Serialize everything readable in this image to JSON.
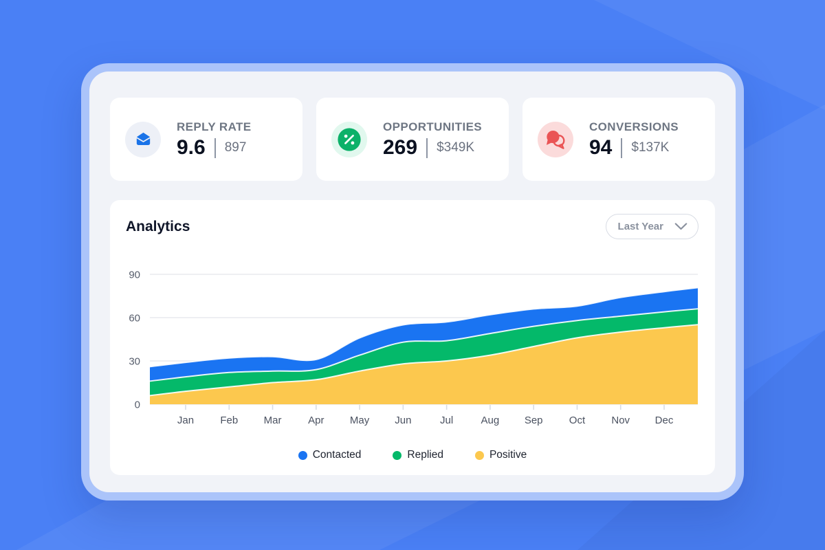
{
  "theme": {
    "background_blue": "#4a80f5",
    "panel_frame": "#abc4fa",
    "panel_bg": "#f1f3f8",
    "card_bg": "#ffffff"
  },
  "stats": [
    {
      "label": "REPLY RATE",
      "value": "9.6",
      "secondary": "897",
      "icon": "envelope-open-icon",
      "icon_color": "#1a73e8",
      "icon_bg": "#edf0f7"
    },
    {
      "label": "OPPORTUNITIES",
      "value": "269",
      "secondary": "$349K",
      "icon": "percent-badge-icon",
      "icon_color": "#0cb169",
      "icon_bg": "#e1f8ee"
    },
    {
      "label": "CONVERSIONS",
      "value": "94",
      "secondary": "$137K",
      "icon": "chat-bubbles-icon",
      "icon_color": "#ea5455",
      "icon_bg": "#fbdbdb"
    }
  ],
  "analytics": {
    "title": "Analytics",
    "range_selector": {
      "value": "Last Year"
    },
    "legend": [
      {
        "label": "Contacted",
        "color": "#1a74f2"
      },
      {
        "label": "Replied",
        "color": "#04b96a"
      },
      {
        "label": "Positive",
        "color": "#fcc84e"
      }
    ]
  },
  "chart_data": {
    "type": "area",
    "stacked": true,
    "title": "Analytics",
    "x": [
      "Jan",
      "Feb",
      "Mar",
      "Apr",
      "May",
      "Jun",
      "Jul",
      "Aug",
      "Sep",
      "Oct",
      "Nov",
      "Dec"
    ],
    "series": [
      {
        "name": "Positive",
        "color": "#fcc84e",
        "values": [
          9,
          12,
          15,
          17,
          23,
          28,
          30,
          34,
          40,
          46,
          50,
          53
        ]
      },
      {
        "name": "Replied",
        "color": "#04b96a",
        "values": [
          10,
          10,
          8,
          7,
          11,
          15,
          14,
          15,
          14,
          12,
          11,
          11
        ]
      },
      {
        "name": "Contacted",
        "color": "#1a74f2",
        "values": [
          10,
          10,
          10,
          7,
          12,
          12,
          13,
          13,
          12,
          10,
          13,
          14
        ]
      }
    ],
    "stack_order": "bottom to top: Positive, Replied, Contacted",
    "yticks": [
      0,
      30,
      60,
      90
    ],
    "ylim": [
      0,
      90
    ],
    "grid": "horizontal",
    "legend_position": "bottom"
  }
}
